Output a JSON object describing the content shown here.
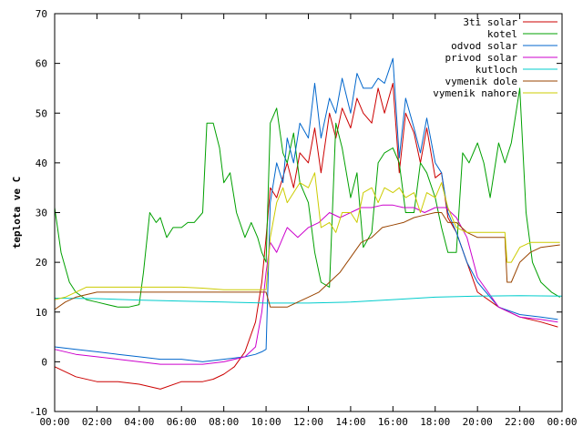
{
  "chart_data": {
    "type": "line",
    "title": "",
    "xlabel": "",
    "ylabel": "teplota ve C",
    "ylim": [
      -10,
      70
    ],
    "yticks": [
      -10,
      0,
      10,
      20,
      30,
      40,
      50,
      60,
      70
    ],
    "xlim": [
      "00:00",
      "24:00"
    ],
    "x_tick_labels": [
      "00:00",
      "02:00",
      "04:00",
      "06:00",
      "08:00",
      "10:00",
      "12:00",
      "14:00",
      "16:00",
      "18:00",
      "20:00",
      "22:00",
      "00:00"
    ],
    "x_tick_hours": [
      0,
      2,
      4,
      6,
      8,
      10,
      12,
      14,
      16,
      18,
      20,
      22,
      24
    ],
    "grid": false,
    "legend_position": "top-right",
    "series": [
      {
        "name": "3ti solar",
        "color": "#cc0000",
        "x": [
          0,
          1,
          2,
          3,
          4,
          5,
          6,
          7,
          7.5,
          8,
          8.5,
          9,
          9.5,
          9.8,
          10,
          10.2,
          10.5,
          11,
          11.3,
          11.6,
          12,
          12.3,
          12.6,
          13,
          13.3,
          13.6,
          14,
          14.3,
          14.6,
          15,
          15.3,
          15.6,
          16,
          16.3,
          16.6,
          17,
          17.3,
          17.6,
          18,
          18.3,
          18.6,
          19,
          19.5,
          20,
          21,
          22,
          23,
          23.8
        ],
        "y": [
          -1,
          -3,
          -4,
          -4,
          -4.5,
          -5.5,
          -4,
          -4,
          -3.5,
          -2.5,
          -1,
          2,
          8,
          16,
          25,
          35,
          33,
          40,
          35,
          42,
          40,
          47,
          38,
          50,
          45,
          51,
          47,
          53,
          50,
          48,
          55,
          50,
          56,
          38,
          50,
          46,
          40,
          47,
          37,
          38,
          29,
          26,
          20,
          14,
          11,
          9,
          8,
          7
        ]
      },
      {
        "name": "kotel",
        "color": "#00a000",
        "x": [
          0,
          0.3,
          0.7,
          1,
          1.5,
          2,
          2.5,
          3,
          3.5,
          4,
          4.2,
          4.5,
          4.8,
          5,
          5.3,
          5.6,
          6,
          6.3,
          6.6,
          7,
          7.2,
          7.5,
          7.8,
          8,
          8.3,
          8.6,
          9,
          9.3,
          9.6,
          9.8,
          10,
          10.2,
          10.5,
          10.8,
          11,
          11.3,
          11.6,
          12,
          12.3,
          12.6,
          13,
          13.3,
          13.6,
          14,
          14.3,
          14.6,
          15,
          15.3,
          15.6,
          16,
          16.3,
          16.6,
          17,
          17.3,
          17.6,
          18,
          18.3,
          18.6,
          19,
          19.3,
          19.6,
          20,
          20.3,
          20.6,
          21,
          21.3,
          21.6,
          22,
          22.3,
          22.6,
          23,
          23.5,
          23.9
        ],
        "y": [
          31,
          22,
          16,
          14,
          12.5,
          12,
          11.5,
          11,
          11,
          11.5,
          18,
          30,
          28,
          29,
          25,
          27,
          27,
          28,
          28,
          30,
          48,
          48,
          43,
          36,
          38,
          30,
          25,
          28,
          25,
          22,
          20,
          48,
          51,
          42,
          40,
          46,
          36,
          32,
          22,
          16,
          15,
          48,
          43,
          33,
          38,
          23,
          26,
          40,
          42,
          43,
          40,
          30,
          30,
          40,
          38,
          33,
          27,
          22,
          22,
          42,
          40,
          44,
          40,
          33,
          44,
          40,
          44,
          55,
          30,
          20,
          16,
          14,
          13
        ]
      },
      {
        "name": "odvod solar",
        "color": "#0066cc",
        "x": [
          0,
          1,
          2,
          3,
          4,
          5,
          6,
          7,
          8,
          9,
          9.5,
          9.8,
          10,
          10.2,
          10.5,
          10.8,
          11,
          11.3,
          11.6,
          12,
          12.3,
          12.6,
          13,
          13.3,
          13.6,
          14,
          14.3,
          14.6,
          15,
          15.3,
          15.6,
          16,
          16.3,
          16.6,
          17,
          17.3,
          17.6,
          18,
          18.3,
          18.6,
          19,
          19.5,
          20,
          21,
          22,
          23,
          23.8
        ],
        "y": [
          3,
          2.5,
          2,
          1.5,
          1,
          0.5,
          0.5,
          0,
          0.5,
          1,
          1.5,
          2,
          2.5,
          32,
          40,
          36,
          45,
          40,
          48,
          45,
          56,
          45,
          53,
          50,
          57,
          50,
          58,
          55,
          55,
          57,
          56,
          61,
          41,
          53,
          47,
          42,
          49,
          40,
          38,
          30,
          26,
          20,
          16,
          11,
          9.5,
          9,
          8.5
        ]
      },
      {
        "name": "privod solar",
        "color": "#cc00cc",
        "x": [
          0,
          1,
          2,
          3,
          4,
          5,
          6,
          7,
          8,
          9,
          9.5,
          9.8,
          10,
          10.2,
          10.5,
          10.8,
          11,
          11.5,
          12,
          12.5,
          13,
          13.5,
          14,
          14.5,
          15,
          15.5,
          16,
          16.5,
          17,
          17.5,
          18,
          18.5,
          19,
          19.5,
          20,
          21,
          22,
          23,
          23.8
        ],
        "y": [
          2.5,
          1.5,
          1,
          0.5,
          0,
          -0.5,
          -0.5,
          -0.5,
          0,
          1,
          3,
          10,
          18,
          24,
          22,
          25,
          27,
          25,
          27,
          28,
          30,
          29,
          30,
          31,
          31,
          31.5,
          31.5,
          31,
          31,
          30,
          31,
          31,
          29,
          25,
          17,
          11,
          9,
          8.5,
          8
        ]
      },
      {
        "name": "kutloch",
        "color": "#00cccc",
        "x": [
          0,
          2,
          4,
          6,
          8,
          10,
          12,
          14,
          16,
          18,
          20,
          22,
          24
        ],
        "y": [
          12.8,
          12.7,
          12.4,
          12.2,
          12,
          11.8,
          11.8,
          12,
          12.5,
          13,
          13.2,
          13.3,
          13.2
        ]
      },
      {
        "name": "vymenik dole",
        "color": "#994400",
        "x": [
          0,
          0.5,
          1,
          1.5,
          2,
          3,
          4,
          5,
          6,
          7,
          8,
          9,
          9.8,
          10,
          10.2,
          10.5,
          11,
          11.5,
          12,
          12.5,
          13,
          13.5,
          14,
          14.5,
          15,
          15.5,
          16,
          16.5,
          17,
          17.5,
          18,
          18.3,
          18.6,
          19,
          19.5,
          20,
          21,
          21.3,
          21.4,
          21.6,
          22,
          22.5,
          23,
          23.9
        ],
        "y": [
          10.5,
          12,
          13,
          13.5,
          14,
          14,
          14,
          14,
          14,
          14,
          14,
          14,
          14,
          14,
          11,
          11,
          11,
          12,
          13,
          14,
          16,
          18,
          21,
          24,
          25,
          27,
          27.5,
          28,
          29,
          29.5,
          30,
          30,
          28,
          28,
          26,
          25,
          25,
          25,
          16,
          16,
          20,
          22,
          23,
          23.5
        ]
      },
      {
        "name": "vymenik nahore",
        "color": "#cccc00",
        "x": [
          0,
          0.5,
          1,
          1.5,
          2,
          3,
          4,
          5,
          6,
          7,
          8,
          9,
          9.8,
          10,
          10.2,
          10.5,
          10.8,
          11,
          11.3,
          11.6,
          12,
          12.3,
          12.6,
          13,
          13.3,
          13.6,
          14,
          14.3,
          14.6,
          15,
          15.3,
          15.6,
          16,
          16.3,
          16.6,
          17,
          17.3,
          17.6,
          18,
          18.3,
          18.6,
          19,
          19.5,
          20,
          21,
          21.3,
          21.4,
          21.6,
          22,
          22.5,
          23,
          23.9
        ],
        "y": [
          12.5,
          13,
          14,
          15,
          15,
          15,
          15,
          15,
          15,
          14.8,
          14.5,
          14.5,
          14.5,
          14.5,
          25,
          32,
          35,
          32,
          34,
          36,
          35,
          38,
          27,
          28,
          26,
          30,
          30,
          28,
          34,
          35,
          32,
          35,
          34,
          35,
          33,
          34,
          30,
          34,
          33,
          36,
          31,
          27,
          26,
          26,
          26,
          26,
          20,
          20,
          23,
          24,
          24,
          24
        ]
      }
    ]
  }
}
